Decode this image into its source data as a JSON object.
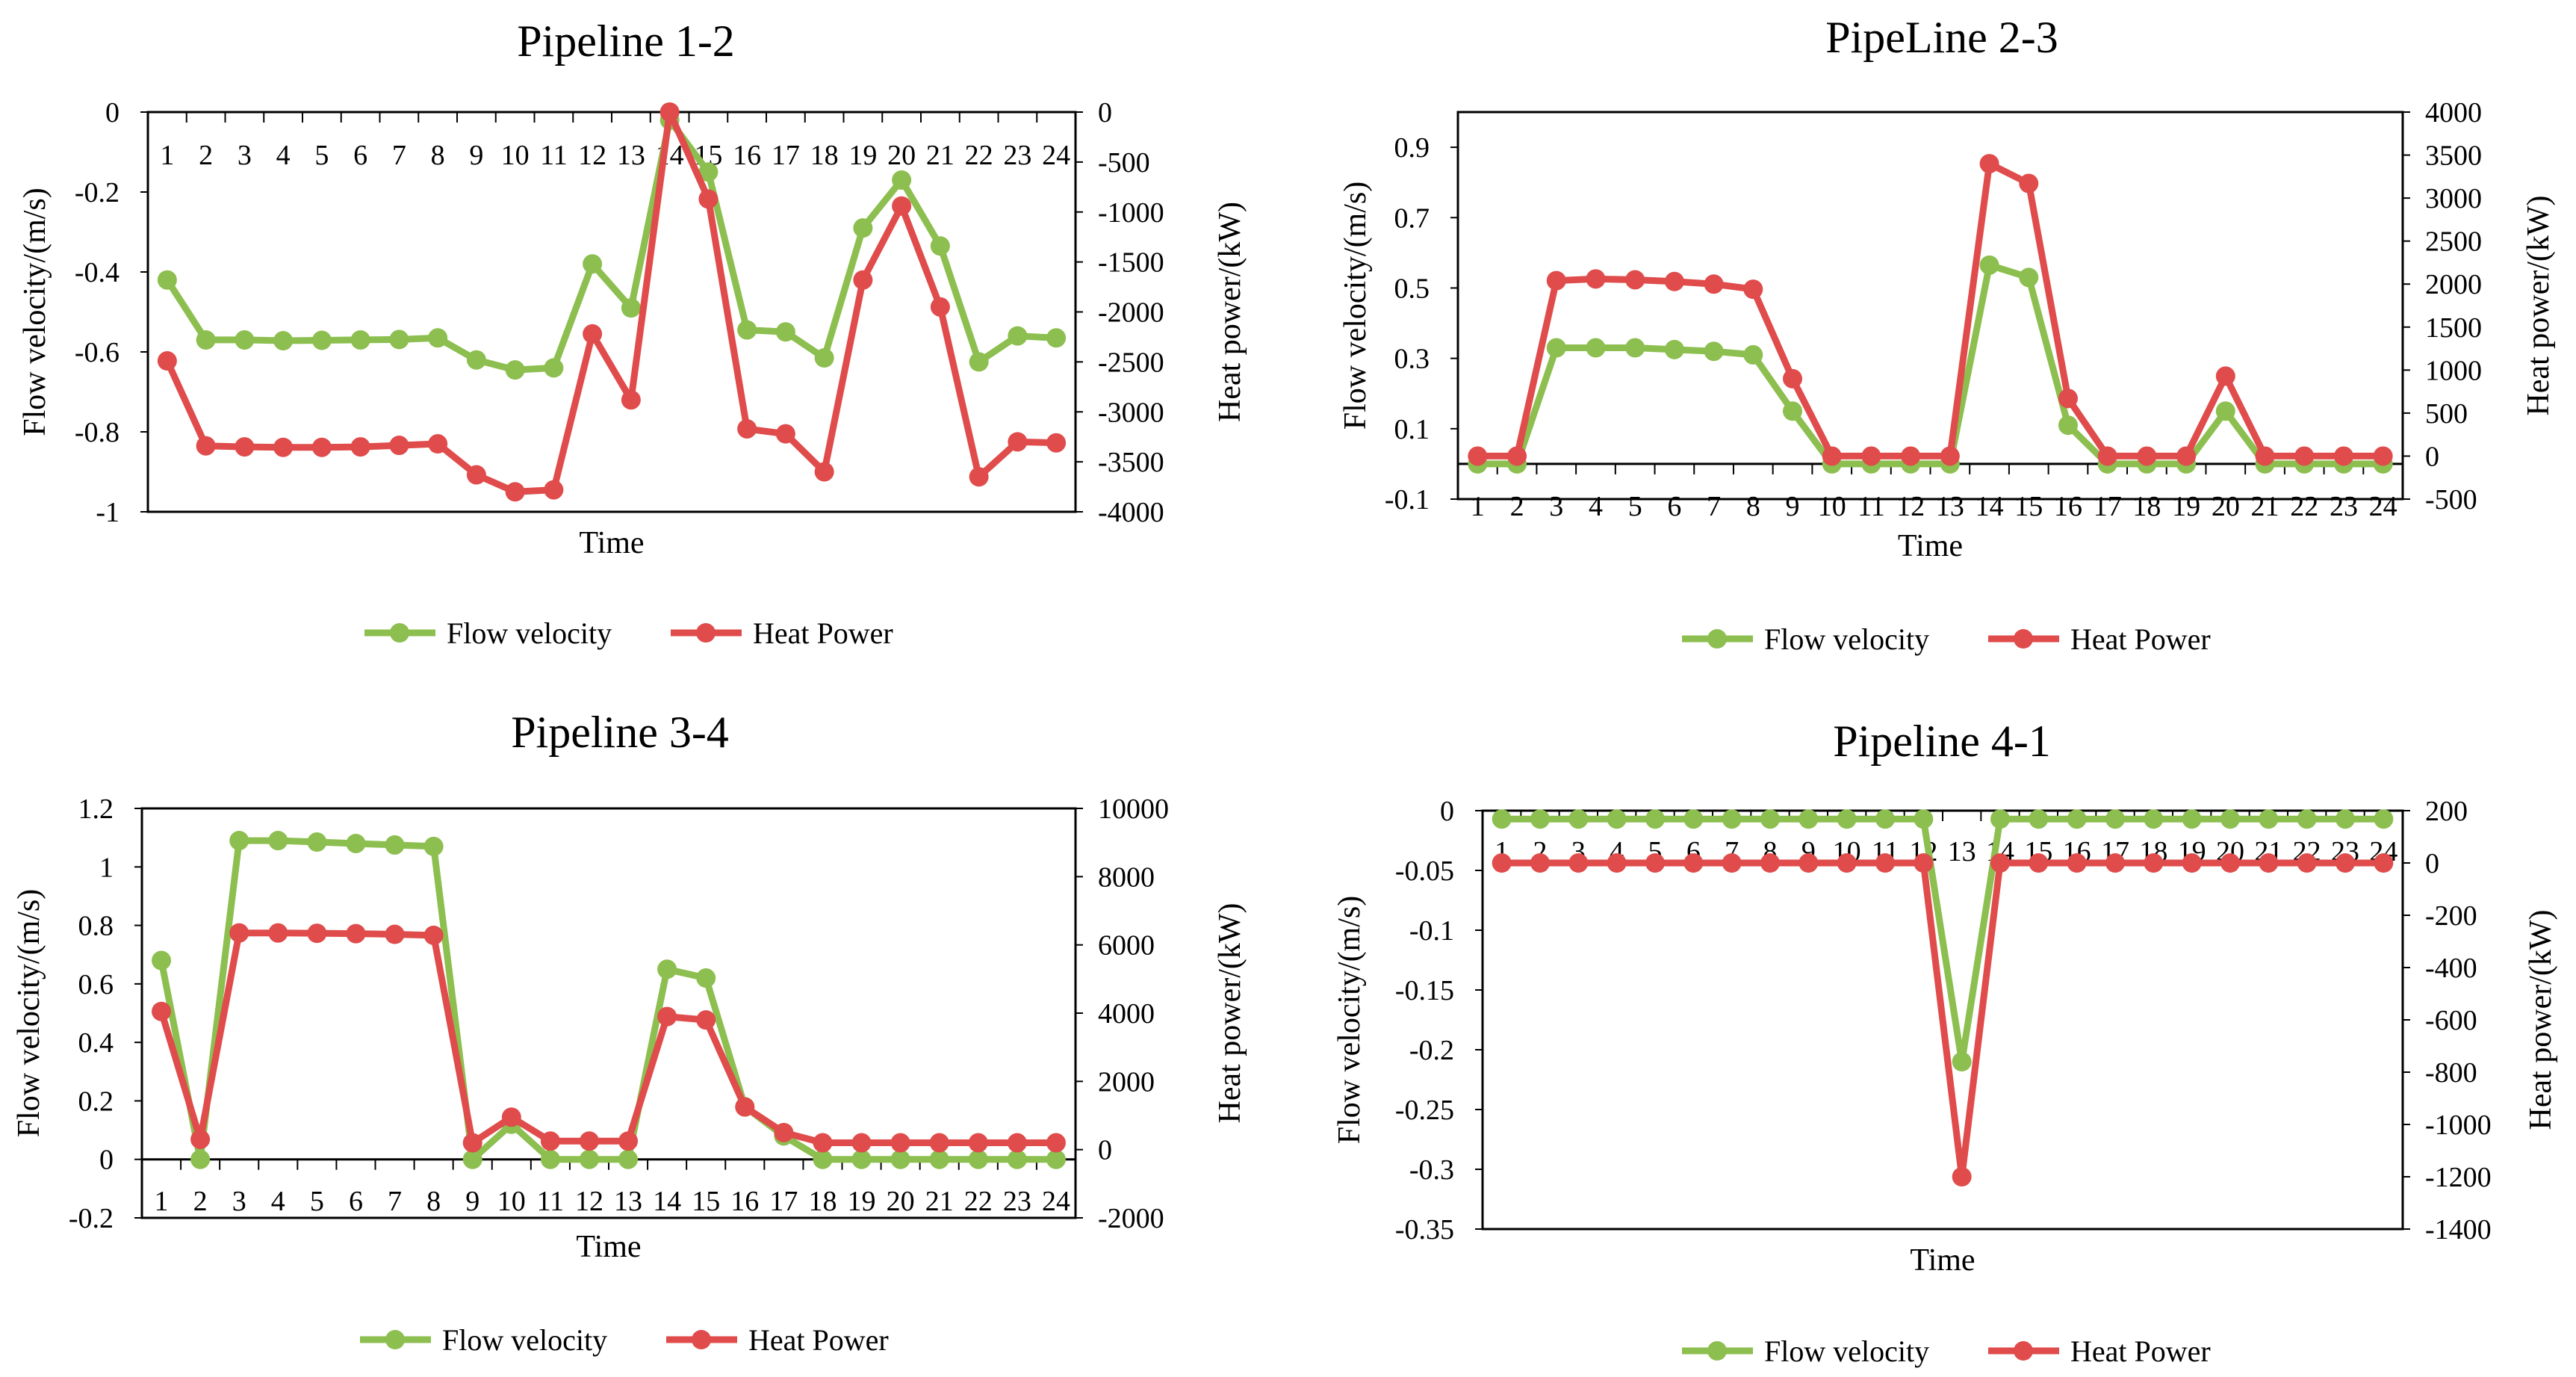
{
  "chart_data": [
    {
      "type": "line",
      "title": "Pipeline 1-2",
      "xlabel": "Time",
      "ylabel_left": "Flow velocity/(m/s)",
      "ylabel_right": "Heat power/(kW)",
      "categories": [
        "1",
        "2",
        "3",
        "4",
        "5",
        "6",
        "7",
        "8",
        "9",
        "10",
        "11",
        "12",
        "13",
        "14",
        "15",
        "16",
        "17",
        "18",
        "19",
        "20",
        "21",
        "22",
        "23",
        "24"
      ],
      "left_axis": {
        "min": -1,
        "max": 0,
        "ticks": [
          0,
          -0.2,
          -0.4,
          -0.6,
          -0.8,
          -1
        ],
        "tick_labels": [
          "0",
          "-0.2",
          "-0.4",
          "-0.6",
          "-0.8",
          "-1"
        ]
      },
      "right_axis": {
        "min": -4000,
        "max": 0,
        "ticks": [
          0,
          -500,
          -1000,
          -1500,
          -2000,
          -2500,
          -3000,
          -3500,
          -4000
        ],
        "tick_labels": [
          "0",
          "-500",
          "-1000",
          "-1500",
          "-2000",
          "-2500",
          "-3000",
          "-3500",
          "-4000"
        ]
      },
      "category_label_pos": "top",
      "series": [
        {
          "name": "Flow velocity",
          "axis": "left",
          "color": "#8cbf4f",
          "values": [
            -0.42,
            -0.57,
            -0.57,
            -0.572,
            -0.571,
            -0.57,
            -0.569,
            -0.565,
            -0.62,
            -0.645,
            -0.64,
            -0.38,
            -0.49,
            -0.02,
            -0.15,
            -0.545,
            -0.55,
            -0.615,
            -0.29,
            -0.17,
            -0.335,
            -0.625,
            -0.56,
            -0.565
          ]
        },
        {
          "name": "Heat Power",
          "axis": "right",
          "color": "#e04b4b",
          "values": [
            -2490,
            -3340,
            -3350,
            -3355,
            -3355,
            -3350,
            -3335,
            -3320,
            -3630,
            -3800,
            -3780,
            -2220,
            -2880,
            0,
            -870,
            -3170,
            -3220,
            -3600,
            -1680,
            -940,
            -1950,
            -3650,
            -3300,
            -3310
          ]
        }
      ],
      "legend": [
        "Flow velocity",
        "Heat Power"
      ]
    },
    {
      "type": "line",
      "title": "PipeLine 2-3",
      "xlabel": "Time",
      "ylabel_left": "Flow velocity/(m/s)",
      "ylabel_right": "Heat power/(kW)",
      "categories": [
        "1",
        "2",
        "3",
        "4",
        "5",
        "6",
        "7",
        "8",
        "9",
        "10",
        "11",
        "12",
        "13",
        "14",
        "15",
        "16",
        "17",
        "18",
        "19",
        "20",
        "21",
        "22",
        "23",
        "24"
      ],
      "left_axis": {
        "min": -0.1,
        "max": 1.0,
        "ticks": [
          0.9,
          0.7,
          0.5,
          0.3,
          0.1,
          -0.1
        ],
        "tick_labels": [
          "0.9",
          "0.7",
          "0.5",
          "0.3",
          "0.1",
          "-0.1"
        ]
      },
      "right_axis": {
        "min": -500,
        "max": 4000,
        "ticks": [
          4000,
          3500,
          3000,
          2500,
          2000,
          1500,
          1000,
          500,
          0,
          -500
        ],
        "tick_labels": [
          "4000",
          "3500",
          "3000",
          "2500",
          "2000",
          "1500",
          "1000",
          "500",
          "0",
          "-500"
        ]
      },
      "category_label_pos": "bottom",
      "series": [
        {
          "name": "Flow velocity",
          "axis": "left",
          "color": "#8cbf4f",
          "values": [
            0,
            0,
            0.33,
            0.33,
            0.33,
            0.325,
            0.32,
            0.31,
            0.15,
            0,
            0,
            0,
            0,
            0.565,
            0.53,
            0.11,
            0,
            0,
            0,
            0.15,
            0,
            0,
            0,
            0
          ]
        },
        {
          "name": "Heat Power",
          "axis": "right",
          "color": "#e04b4b",
          "values": [
            0,
            0,
            2040,
            2060,
            2050,
            2030,
            2000,
            1940,
            900,
            0,
            0,
            0,
            0,
            3400,
            3170,
            670,
            0,
            0,
            0,
            930,
            0,
            0,
            0,
            0
          ]
        }
      ],
      "legend": [
        "Flow velocity",
        "Heat Power"
      ]
    },
    {
      "type": "line",
      "title": "Pipeline 3-4",
      "xlabel": "Time",
      "ylabel_left": "Flow velocity/(m/s)",
      "ylabel_right": "Heat power/(kW)",
      "categories": [
        "1",
        "2",
        "3",
        "4",
        "5",
        "6",
        "7",
        "8",
        "9",
        "10",
        "11",
        "12",
        "13",
        "14",
        "15",
        "16",
        "17",
        "18",
        "19",
        "20",
        "21",
        "22",
        "23",
        "24"
      ],
      "left_axis": {
        "min": -0.2,
        "max": 1.2,
        "ticks": [
          1.2,
          1,
          0.8,
          0.6,
          0.4,
          0.2,
          0,
          -0.2
        ],
        "tick_labels": [
          "1.2",
          "1",
          "0.8",
          "0.6",
          "0.4",
          "0.2",
          "0",
          "-0.2"
        ]
      },
      "right_axis": {
        "min": -2000,
        "max": 10000,
        "ticks": [
          10000,
          8000,
          6000,
          4000,
          2000,
          0,
          -2000
        ],
        "tick_labels": [
          "10000",
          "8000",
          "6000",
          "4000",
          "2000",
          "0",
          "-2000"
        ]
      },
      "category_label_pos": "bottom",
      "series": [
        {
          "name": "Flow velocity",
          "axis": "left",
          "color": "#8cbf4f",
          "values": [
            0.68,
            0,
            1.09,
            1.09,
            1.085,
            1.08,
            1.075,
            1.07,
            0,
            0.12,
            0,
            0,
            0,
            0.65,
            0.62,
            0.18,
            0.08,
            0,
            0,
            0,
            0,
            0,
            0,
            0
          ]
        },
        {
          "name": "Heat Power",
          "axis": "right",
          "color": "#e04b4b",
          "values": [
            4050,
            300,
            6350,
            6350,
            6340,
            6330,
            6310,
            6280,
            200,
            950,
            250,
            250,
            250,
            3900,
            3800,
            1250,
            500,
            200,
            200,
            200,
            200,
            200,
            200,
            200
          ]
        }
      ],
      "legend": [
        "Flow velocity",
        "Heat Power"
      ]
    },
    {
      "type": "line",
      "title": "Pipeline 4-1",
      "xlabel": "Time",
      "ylabel_left": "Flow velocity/(m/s)",
      "ylabel_right": "Heat power/(kW)",
      "categories": [
        "1",
        "2",
        "3",
        "4",
        "5",
        "6",
        "7",
        "8",
        "9",
        "10",
        "11",
        "12",
        "13",
        "14",
        "15",
        "16",
        "17",
        "18",
        "19",
        "20",
        "21",
        "22",
        "23",
        "24"
      ],
      "left_axis": {
        "min": -0.35,
        "max": 0,
        "ticks": [
          0,
          -0.05,
          -0.1,
          -0.15,
          -0.2,
          -0.25,
          -0.3,
          -0.35
        ],
        "tick_labels": [
          "0",
          "-0.05",
          "-0.1",
          "-0.15",
          "-0.2",
          "-0.25",
          "-0.3",
          "-0.35"
        ]
      },
      "right_axis": {
        "min": -1400,
        "max": 200,
        "ticks": [
          200,
          0,
          -200,
          -400,
          -600,
          -800,
          -1000,
          -1200,
          -1400
        ],
        "tick_labels": [
          "200",
          "0",
          "-200",
          "-400",
          "-600",
          "-800",
          "-1000",
          "-1200",
          "-1400"
        ]
      },
      "category_label_pos": "top",
      "series": [
        {
          "name": "Flow velocity",
          "axis": "left",
          "color": "#8cbf4f",
          "values": [
            -0.007,
            -0.007,
            -0.007,
            -0.007,
            -0.007,
            -0.007,
            -0.007,
            -0.007,
            -0.007,
            -0.007,
            -0.007,
            -0.007,
            -0.21,
            -0.007,
            -0.007,
            -0.007,
            -0.007,
            -0.007,
            -0.007,
            -0.007,
            -0.007,
            -0.007,
            -0.007,
            -0.007
          ]
        },
        {
          "name": "Heat Power",
          "axis": "right",
          "color": "#e04b4b",
          "values": [
            0,
            0,
            0,
            0,
            0,
            0,
            0,
            0,
            0,
            0,
            0,
            0,
            -1200,
            0,
            0,
            0,
            0,
            0,
            0,
            0,
            0,
            0,
            0,
            0
          ]
        }
      ],
      "legend": [
        "Flow velocity",
        "Heat Power"
      ]
    }
  ]
}
